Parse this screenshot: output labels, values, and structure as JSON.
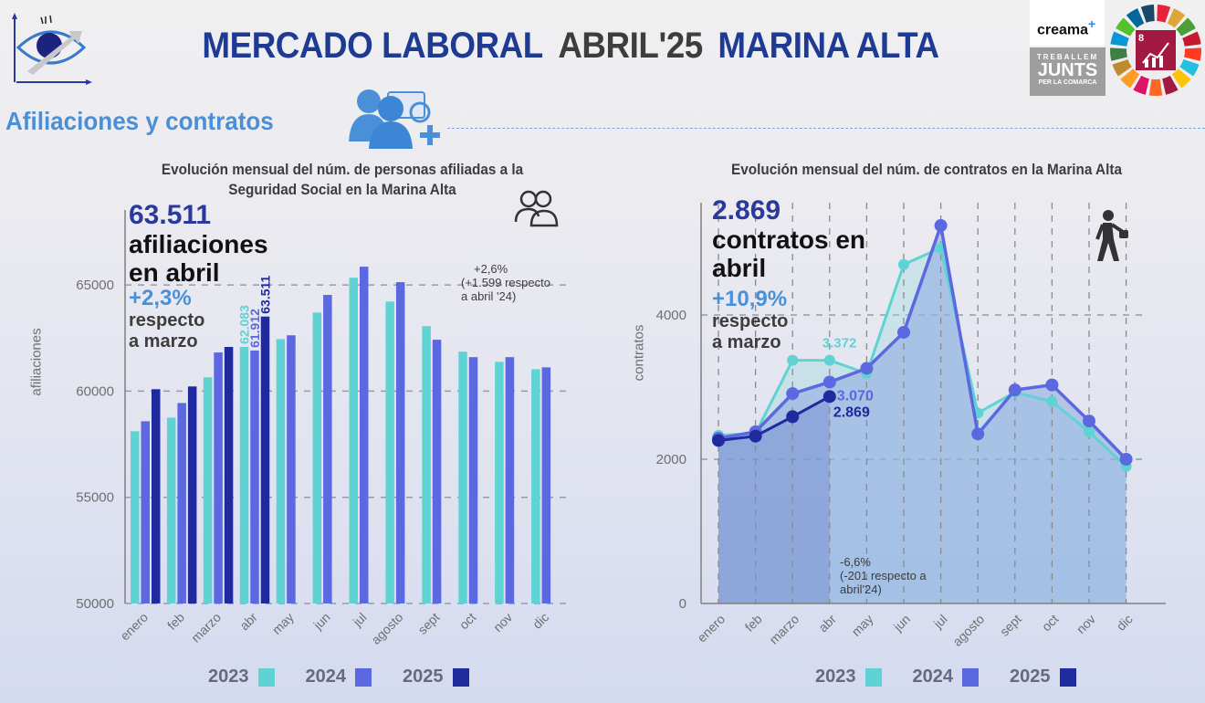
{
  "header": {
    "title_part1": "MERCADO LABORAL",
    "title_part2": "ABRIL'25",
    "title_part3": "MARINA ALTA",
    "logo_icon": "eye-chart-icon",
    "partner_logos": {
      "creama": "creama",
      "creama_plus": "+",
      "treballem_line1": "TREBALLEM",
      "treballem_line2": "JUNTS",
      "treballem_line3": "PER LA COMARCA",
      "sdg_number": "8",
      "sdg_label": "TRABAJO DECENTE Y CRECIMIENTO ECONÓMICO"
    }
  },
  "section": {
    "title": "Afiliaciones y contratos",
    "icon": "people-settings-icon"
  },
  "colors": {
    "y2023": "#5fd3d3",
    "y2024": "#5b68e0",
    "y2025": "#1f2a9c",
    "title_blue": "#1f3a93",
    "accent_blue": "#4a90d9"
  },
  "left_panel": {
    "headline_value": "63.511",
    "headline_text_1": "afiliaciones",
    "headline_text_2": "en abril",
    "change_pct": "+2,3%",
    "change_text_1": "respecto",
    "change_text_2": "a marzo",
    "annual_note_1": "+2,6%",
    "annual_note_2": "(+1.599 respecto",
    "annual_note_3": "a abril '24)",
    "icon": "people-outline-icon"
  },
  "right_panel": {
    "headline_value": "2.869",
    "headline_text_1": "contratos en",
    "headline_text_2": "abril",
    "change_pct": "+10,9%",
    "change_text_1": "respecto",
    "change_text_2": "a marzo",
    "annual_note_1": "-6,6%",
    "annual_note_2": "(-201 respecto a",
    "annual_note_3": "abril'24)",
    "icon": "walking-businessman-icon"
  },
  "chart_data": [
    {
      "type": "bar",
      "title": "Evolución mensual del núm. de personas afiliadas a la Seguridad Social en la Marina Alta",
      "xlabel": "",
      "ylabel": "afiliaciones",
      "ylim": [
        50000,
        67000
      ],
      "yticks": [
        50000,
        55000,
        60000,
        65000
      ],
      "grid": "horizontal dashed",
      "legend_position": "bottom",
      "categories": [
        "enero",
        "feb",
        "marzo",
        "abr",
        "may",
        "jun",
        "jul",
        "agosto",
        "sept",
        "oct",
        "nov",
        "dic"
      ],
      "series": [
        {
          "name": "2023",
          "color": "#5fd3d3",
          "values": [
            58110,
            58750,
            60650,
            62083,
            62450,
            63700,
            65340,
            64220,
            63060,
            61860,
            61380,
            61030
          ]
        },
        {
          "name": "2024",
          "color": "#5b68e0",
          "values": [
            58580,
            59440,
            61820,
            61912,
            62630,
            64530,
            65860,
            65130,
            62420,
            61600,
            61600,
            61120
          ]
        },
        {
          "name": "2025",
          "color": "#1f2a9c",
          "values": [
            60090,
            60220,
            62080,
            63511,
            null,
            null,
            null,
            null,
            null,
            null,
            null,
            null
          ]
        }
      ],
      "data_labels": [
        {
          "series": "2023",
          "category": "abr",
          "text": "62.083"
        },
        {
          "series": "2024",
          "category": "abr",
          "text": "61.912"
        },
        {
          "series": "2025",
          "category": "abr",
          "text": "63.511"
        }
      ]
    },
    {
      "type": "area",
      "title": "Evolución mensual del núm. de contratos en la Marina Alta",
      "xlabel": "",
      "ylabel": "contratos",
      "ylim": [
        0,
        5500
      ],
      "yticks": [
        0,
        2000,
        4000
      ],
      "grid": "both dashed",
      "legend_position": "bottom",
      "categories": [
        "enero",
        "feb",
        "marzo",
        "abr",
        "may",
        "jun",
        "jul",
        "agosto",
        "sept",
        "oct",
        "nov",
        "dic"
      ],
      "series": [
        {
          "name": "2023",
          "color": "#5fd3d3",
          "values": [
            2330,
            2360,
            3372,
            3372,
            3190,
            4700,
            4930,
            2640,
            2930,
            2800,
            2380,
            1900
          ]
        },
        {
          "name": "2024",
          "color": "#5b68e0",
          "values": [
            2290,
            2380,
            2910,
            3070,
            3260,
            3760,
            5240,
            2350,
            2960,
            3030,
            2530,
            2000
          ]
        },
        {
          "name": "2025",
          "color": "#1f2a9c",
          "values": [
            2260,
            2320,
            2590,
            2869,
            null,
            null,
            null,
            null,
            null,
            null,
            null,
            null
          ]
        }
      ],
      "data_labels": [
        {
          "series": "2023",
          "category": "abr",
          "text": "3.372"
        },
        {
          "series": "2024",
          "category": "abr",
          "text": "3.070"
        },
        {
          "series": "2025",
          "category": "abr",
          "text": "2.869"
        }
      ]
    }
  ]
}
